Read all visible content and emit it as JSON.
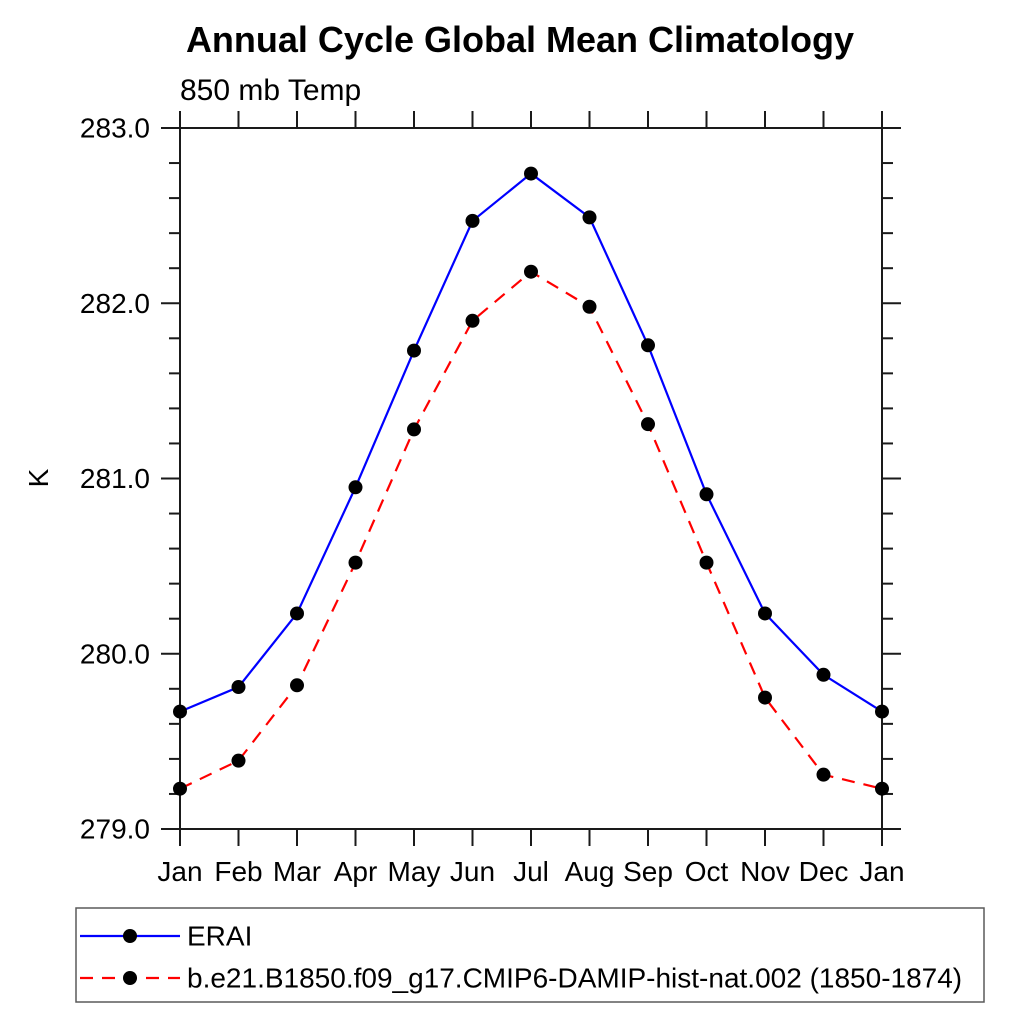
{
  "header": {
    "title": "Annual Cycle Global Mean Climatology",
    "subtitle": "850 mb Temp"
  },
  "chart_data": {
    "type": "line",
    "title": "Annual Cycle Global Mean Climatology",
    "subtitle": "850 mb Temp",
    "xlabel": "",
    "ylabel": "K",
    "x_tick_labels": [
      "Jan",
      "Feb",
      "Mar",
      "Apr",
      "May",
      "Jun",
      "Jul",
      "Aug",
      "Sep",
      "Oct",
      "Nov",
      "Dec",
      "Jan"
    ],
    "ylim": [
      279.0,
      283.0
    ],
    "y_tick_labels": [
      "279.0",
      "280.0",
      "281.0",
      "282.0",
      "283.0"
    ],
    "y_major_ticks": [
      279.0,
      280.0,
      281.0,
      282.0,
      283.0
    ],
    "y_minor_step": 0.2,
    "grid": false,
    "legend_position": "bottom-left-box",
    "series": [
      {
        "name": "ERAI",
        "color": "#0000ff",
        "line_style": "solid",
        "marker": "filled-circle",
        "marker_color": "#000000",
        "values": [
          279.67,
          279.81,
          280.23,
          280.95,
          281.73,
          282.47,
          282.74,
          282.49,
          281.76,
          280.91,
          280.23,
          279.88,
          279.67
        ]
      },
      {
        "name": "b.e21.B1850.f09_g17.CMIP6-DAMIP-hist-nat.002 (1850-1874)",
        "color": "#ff0000",
        "line_style": "dashed",
        "marker": "filled-circle",
        "marker_color": "#000000",
        "values": [
          279.23,
          279.39,
          279.82,
          280.52,
          281.28,
          281.9,
          282.18,
          281.98,
          281.31,
          280.52,
          279.75,
          279.31,
          279.23
        ]
      }
    ]
  },
  "colors": {
    "axis": "#1a1a1a",
    "series1": "#0000ff",
    "series2": "#ff0000",
    "marker": "#000000",
    "legend_border": "#5a5a5a",
    "background": "#ffffff"
  }
}
